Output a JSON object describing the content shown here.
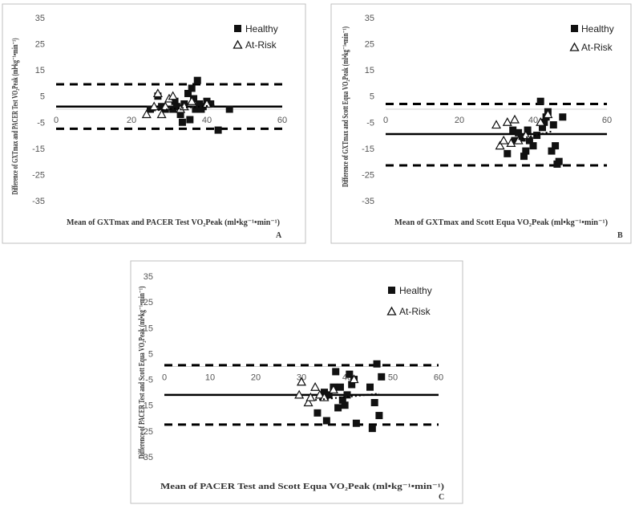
{
  "chart_data": [
    {
      "type": "scatter",
      "panel_label": "A",
      "xlabel": "Mean of GXTmax and PACER Test VO₂Peak (ml•kg⁻¹•min⁻¹)",
      "ylabel": "Difference of GXTmax and PACER Test VO₂Peak (ml•kg⁻¹•min⁻¹)",
      "xlim": [
        0,
        60
      ],
      "ylim": [
        -35,
        35
      ],
      "xticks": [
        0,
        20,
        40,
        60
      ],
      "yticks": [
        35,
        25,
        15,
        5,
        -5,
        -15,
        -25,
        -35
      ],
      "legend": [
        "Healthy",
        "At-Risk"
      ],
      "mean_line": 1,
      "loa": [
        9.5,
        -7.5
      ],
      "trend": {
        "x": [
          26,
          42
        ],
        "y": [
          -0.5,
          1.5
        ]
      },
      "series": [
        {
          "name": "Healthy",
          "marker": "square",
          "x": [
            25,
            27,
            28,
            29,
            31,
            31.5,
            32,
            33,
            33.5,
            34,
            35,
            35.5,
            36,
            36.5,
            37,
            37.5,
            38,
            38.5,
            39,
            40,
            41,
            43,
            46
          ],
          "y": [
            0,
            5,
            1,
            0,
            0,
            3,
            1,
            -2,
            -5,
            2,
            6,
            -4,
            8,
            4,
            0,
            11,
            2,
            0,
            1,
            3,
            2,
            -8,
            0
          ]
        },
        {
          "name": "At-Risk",
          "marker": "triangle",
          "x": [
            24,
            26,
            27,
            28,
            29,
            30,
            31,
            33,
            34,
            36,
            40
          ],
          "y": [
            -2,
            1,
            6,
            -2,
            1,
            4,
            5,
            0,
            1,
            3,
            2
          ]
        }
      ]
    },
    {
      "type": "scatter",
      "panel_label": "B",
      "xlabel": "Mean of GXTmax and Scott Equa VO₂Peak (ml•kg⁻¹•min⁻¹)",
      "ylabel": "Difference of GXTmax and Scott Equa VO₂Peak (ml•kg⁻¹•min⁻¹)",
      "xlim": [
        0,
        60
      ],
      "ylim": [
        -35,
        35
      ],
      "xticks": [
        0,
        20,
        40,
        60
      ],
      "yticks": [
        35,
        25,
        15,
        5,
        -5,
        -15,
        -25,
        -35
      ],
      "legend": [
        "Healthy",
        "At-Risk"
      ],
      "mean_line": -9.5,
      "loa": [
        2,
        -21.5
      ],
      "trend": {
        "x": [
          36,
          45
        ],
        "y": [
          -11.5,
          -8.5
        ]
      },
      "series": [
        {
          "name": "Healthy",
          "marker": "square",
          "x": [
            33,
            34.5,
            35,
            36,
            37,
            37.5,
            38,
            38.5,
            39,
            40,
            41,
            42,
            42.5,
            43,
            43.5,
            44,
            45,
            45.5,
            46,
            46.5,
            47,
            48
          ],
          "y": [
            -17,
            -8,
            -12,
            -9,
            -11,
            -18,
            -16,
            -8,
            -12,
            -14,
            -10,
            3,
            -7,
            -5,
            -3,
            -1,
            -16,
            -6,
            -14,
            -21,
            -20,
            -3
          ]
        },
        {
          "name": "At-Risk",
          "marker": "triangle",
          "x": [
            30,
            31,
            32,
            33,
            34,
            35,
            36,
            38,
            42,
            44
          ],
          "y": [
            -6,
            -14,
            -12,
            -5,
            -13,
            -4,
            -12,
            -10,
            -5,
            -2
          ]
        }
      ]
    },
    {
      "type": "scatter",
      "panel_label": "C",
      "xlabel": "Mean of PACER Test and Scott Equa VO₂Peak (ml•kg⁻¹•min⁻¹)",
      "ylabel": "Difference of PACER Test and Scott Equa VO₂Peak (ml•kg⁻¹•min⁻¹)",
      "xlim": [
        0,
        60
      ],
      "ylim": [
        -35,
        35
      ],
      "xticks": [
        0,
        10,
        20,
        30,
        40,
        50,
        60
      ],
      "yticks": [
        35,
        25,
        15,
        5,
        -5,
        -15,
        -25,
        -35
      ],
      "legend": [
        "Healthy",
        "At-Risk"
      ],
      "mean_line": -11,
      "loa": [
        0.5,
        -22.5
      ],
      "trend": {
        "x": [
          33,
          47
        ],
        "y": [
          -13,
          -10.5
        ]
      },
      "series": [
        {
          "name": "Healthy",
          "marker": "square",
          "x": [
            33.5,
            35,
            35.5,
            36,
            37,
            37.5,
            38,
            38.5,
            39,
            39.5,
            40,
            40.5,
            41,
            41.5,
            42,
            45,
            45.5,
            46,
            46.5,
            47,
            47.5
          ],
          "y": [
            -18,
            -10,
            -21,
            -11,
            -8,
            -2,
            -16,
            -8,
            -13,
            -15,
            -11,
            -3,
            -7,
            -5,
            -22,
            -8,
            -24,
            -14,
            1,
            -19,
            -4
          ]
        },
        {
          "name": "At-Risk",
          "marker": "triangle",
          "x": [
            29.5,
            30,
            31.5,
            32,
            33,
            34,
            35,
            37,
            41.5
          ],
          "y": [
            -11,
            -6,
            -14,
            -12,
            -8,
            -11,
            -12,
            -9,
            -5
          ]
        }
      ]
    }
  ]
}
